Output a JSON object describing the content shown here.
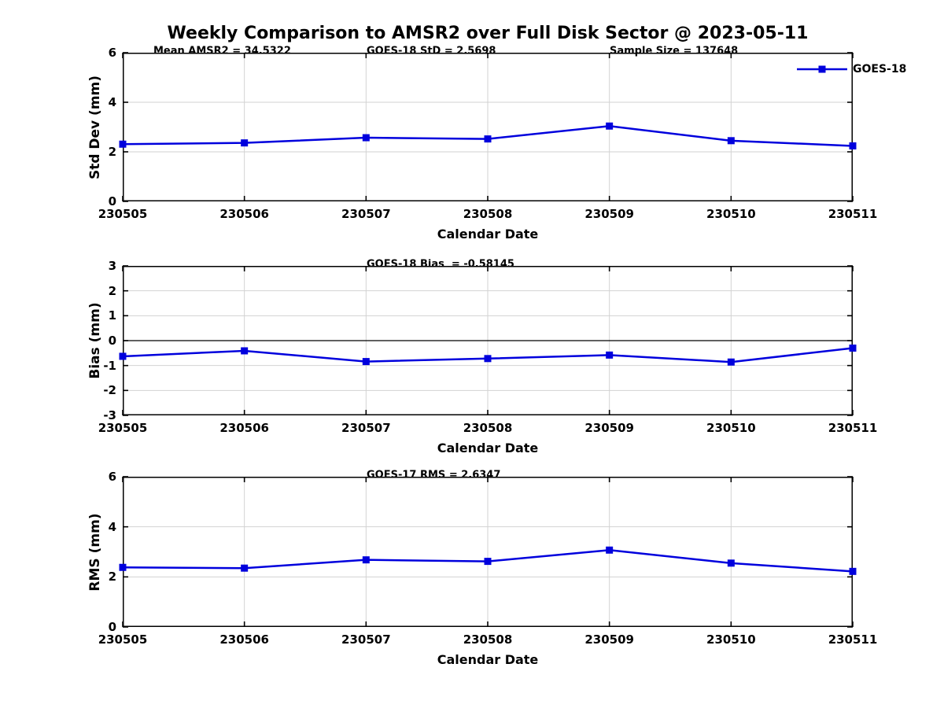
{
  "title": "Weekly Comparison to AMSR2 over Full Disk Sector @ 2023-05-11",
  "legend": {
    "label": "GOES-18"
  },
  "colors": {
    "line": "#0000dd",
    "marker": "#0000dd",
    "grid": "#d2d2d2",
    "axis": "#000000",
    "zero_line": "#000000",
    "background": "#ffffff"
  },
  "chart_data": [
    {
      "type": "line",
      "categories": [
        "230505",
        "230506",
        "230507",
        "230508",
        "230509",
        "230510",
        "230511"
      ],
      "series": [
        {
          "name": "GOES-18",
          "values": [
            2.31,
            2.36,
            2.57,
            2.52,
            3.04,
            2.45,
            2.24
          ]
        }
      ],
      "xlabel": "Calendar Date",
      "ylabel": "Std Dev (mm)",
      "ylim": [
        0,
        6
      ],
      "yticks": [
        0,
        2,
        4,
        6
      ],
      "grid": true,
      "legend_position": "top-right-outside",
      "annotations": [
        "Mean AMSR2 = 34.5322",
        "GOES-18 StD = 2.5698",
        "Sample Size = 137648"
      ]
    },
    {
      "type": "line",
      "categories": [
        "230505",
        "230506",
        "230507",
        "230508",
        "230509",
        "230510",
        "230511"
      ],
      "series": [
        {
          "name": "GOES-18",
          "values": [
            -0.63,
            -0.41,
            -0.84,
            -0.72,
            -0.58,
            -0.86,
            -0.3
          ]
        }
      ],
      "xlabel": "Calendar Date",
      "ylabel": "Bias (mm)",
      "ylim": [
        -3,
        3
      ],
      "yticks": [
        -3,
        -2,
        -1,
        0,
        1,
        2,
        3
      ],
      "grid": true,
      "zero_line": true,
      "annotations": [
        "GOES-18 Bias  = -0.58145"
      ]
    },
    {
      "type": "line",
      "categories": [
        "230505",
        "230506",
        "230507",
        "230508",
        "230509",
        "230510",
        "230511"
      ],
      "series": [
        {
          "name": "GOES-18",
          "values": [
            2.38,
            2.35,
            2.68,
            2.62,
            3.07,
            2.55,
            2.22
          ]
        }
      ],
      "xlabel": "Calendar Date",
      "ylabel": "RMS (mm)",
      "ylim": [
        0,
        6
      ],
      "yticks": [
        0,
        2,
        4,
        6
      ],
      "grid": true,
      "annotations": [
        "GOES-17 RMS = 2.6347"
      ]
    }
  ]
}
